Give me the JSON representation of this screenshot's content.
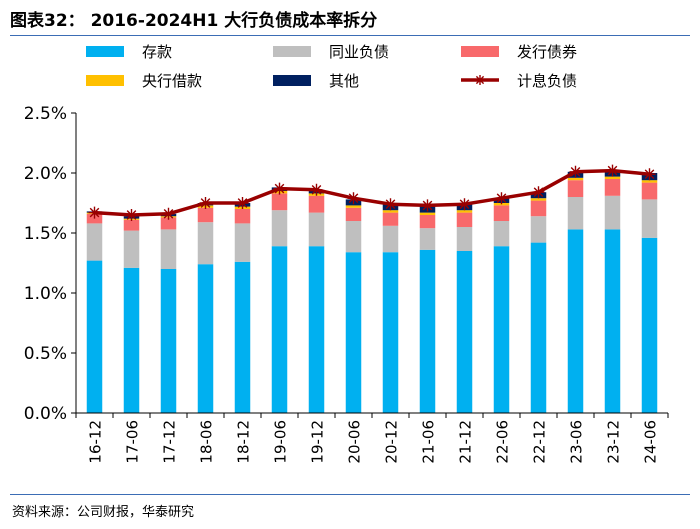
{
  "header": {
    "title": "图表32： 2016-2024H1 大行负债成本率拆分",
    "source": "资料来源：公司财报，华泰研究"
  },
  "colors": {
    "deposits": "#00B0F0",
    "interbank": "#BFBFBF",
    "bonds": "#F8696B",
    "borrowing": "#FFC000",
    "other": "#002060",
    "total": "#990000",
    "rule": "#3B6DB5"
  },
  "chart_data": {
    "type": "bar",
    "stacked": true,
    "title": "2016-2024H1 大行负债成本率拆分",
    "xlabel": "",
    "ylabel": "",
    "ylim": [
      0,
      2.5
    ],
    "y_ticks": [
      "0.0%",
      "0.5%",
      "1.0%",
      "1.5%",
      "2.0%",
      "2.5%"
    ],
    "grid": false,
    "legend_position": "top",
    "categories": [
      "16-12",
      "17-06",
      "17-12",
      "18-06",
      "18-12",
      "19-06",
      "19-12",
      "20-06",
      "20-12",
      "21-06",
      "21-12",
      "22-06",
      "22-12",
      "23-06",
      "23-12",
      "24-06"
    ],
    "series": [
      {
        "name": "存款",
        "key": "deposits",
        "kind": "bar",
        "values": [
          1.27,
          1.21,
          1.2,
          1.24,
          1.26,
          1.39,
          1.39,
          1.34,
          1.34,
          1.36,
          1.35,
          1.39,
          1.42,
          1.53,
          1.53,
          1.46
        ]
      },
      {
        "name": "同业负债",
        "key": "interbank",
        "kind": "bar",
        "values": [
          0.31,
          0.31,
          0.33,
          0.35,
          0.32,
          0.3,
          0.28,
          0.26,
          0.22,
          0.18,
          0.2,
          0.21,
          0.22,
          0.27,
          0.28,
          0.32
        ]
      },
      {
        "name": "发行债券",
        "key": "bonds",
        "kind": "bar",
        "values": [
          0.08,
          0.09,
          0.1,
          0.12,
          0.12,
          0.14,
          0.14,
          0.11,
          0.11,
          0.11,
          0.12,
          0.13,
          0.13,
          0.14,
          0.14,
          0.14
        ]
      },
      {
        "name": "央行借款",
        "key": "borrowing",
        "kind": "bar",
        "values": [
          0.01,
          0.01,
          0.01,
          0.02,
          0.02,
          0.02,
          0.02,
          0.02,
          0.02,
          0.02,
          0.02,
          0.02,
          0.02,
          0.02,
          0.02,
          0.02
        ]
      },
      {
        "name": "其他",
        "key": "other",
        "kind": "bar",
        "values": [
          0.01,
          0.02,
          0.02,
          0.02,
          0.03,
          0.03,
          0.03,
          0.05,
          0.05,
          0.06,
          0.05,
          0.04,
          0.05,
          0.05,
          0.05,
          0.06
        ]
      },
      {
        "name": "计息负债",
        "key": "total",
        "kind": "line",
        "values": [
          1.67,
          1.65,
          1.66,
          1.75,
          1.75,
          1.87,
          1.86,
          1.79,
          1.74,
          1.73,
          1.74,
          1.79,
          1.84,
          2.01,
          2.02,
          1.99
        ]
      }
    ]
  }
}
